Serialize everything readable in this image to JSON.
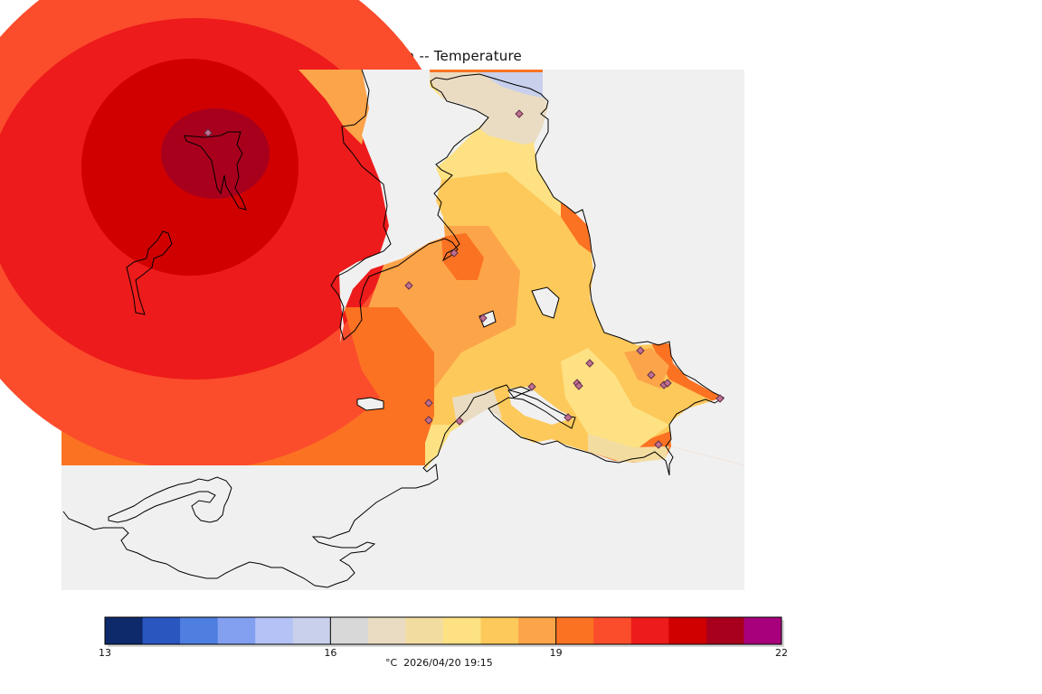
{
  "title": "VictoriaWeather.ca -- Temperature",
  "colorbar": {
    "min": 13,
    "max": 22,
    "tick_labels": [
      "13",
      "16",
      "19",
      "22"
    ],
    "tick_values": [
      13,
      16,
      19,
      22
    ],
    "colors": [
      "#0f2a6b",
      "#2a56c0",
      "#4e7ee0",
      "#829ff0",
      "#b4c2f5",
      "#c8d0ec",
      "#d8d8d8",
      "#eadcc2",
      "#f3dca0",
      "#fde183",
      "#fdc95a",
      "#fca449",
      "#fb7222",
      "#fb4c2c",
      "#ed1b1b",
      "#d00000",
      "#a8001c",
      "#a8007c"
    ],
    "units_label": "°C  2026/04/20 19:15"
  },
  "colors": {
    "land_fill": "#f0f0f0",
    "coastline": "#000000",
    "station_marker": "#a06080"
  }
}
